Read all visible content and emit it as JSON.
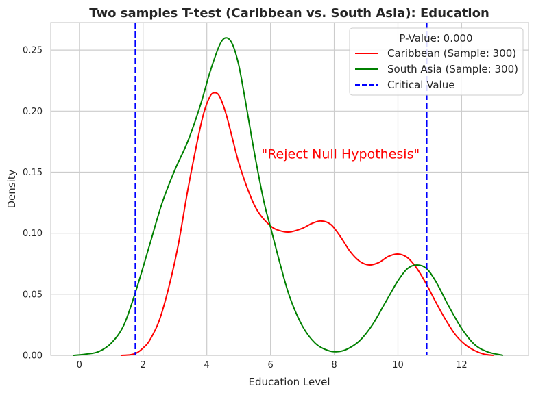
{
  "chart_data": {
    "type": "line",
    "title": "Two samples T-test (Caribbean vs. South Asia): Education",
    "xlabel": "Education Level",
    "ylabel": "Density",
    "xlim": [
      -0.9,
      14.1
    ],
    "ylim": [
      0,
      0.2725
    ],
    "xticks": [
      0,
      2,
      4,
      6,
      8,
      10,
      12
    ],
    "yticks": [
      0.0,
      0.05,
      0.1,
      0.15,
      0.2,
      0.25
    ],
    "ytick_labels": [
      "0.00",
      "0.05",
      "0.10",
      "0.15",
      "0.20",
      "0.25"
    ],
    "grid": true,
    "legend": {
      "title": "P-Value: 0.000",
      "placement": "top-right",
      "entries": [
        "Caribbean (Sample: 300)",
        "South Asia (Sample: 300)",
        "Critical Value"
      ]
    },
    "annotation": {
      "text": "\"Reject Null Hypothesis\"",
      "x": 8.2,
      "y": 0.165,
      "color": "#ff0000"
    },
    "critical_values": [
      1.76,
      10.9
    ],
    "series": [
      {
        "name": "Caribbean (Sample: 300)",
        "color": "#ff0000",
        "points": [
          [
            1.3,
            0.0
          ],
          [
            1.6,
            0.0005
          ],
          [
            1.8,
            0.002
          ],
          [
            2.0,
            0.006
          ],
          [
            2.2,
            0.012
          ],
          [
            2.5,
            0.028
          ],
          [
            2.8,
            0.055
          ],
          [
            3.1,
            0.09
          ],
          [
            3.4,
            0.135
          ],
          [
            3.7,
            0.175
          ],
          [
            3.9,
            0.198
          ],
          [
            4.1,
            0.212
          ],
          [
            4.25,
            0.215
          ],
          [
            4.4,
            0.212
          ],
          [
            4.6,
            0.198
          ],
          [
            4.8,
            0.178
          ],
          [
            5.0,
            0.158
          ],
          [
            5.3,
            0.135
          ],
          [
            5.6,
            0.118
          ],
          [
            6.0,
            0.106
          ],
          [
            6.3,
            0.102
          ],
          [
            6.6,
            0.101
          ],
          [
            7.0,
            0.104
          ],
          [
            7.3,
            0.108
          ],
          [
            7.6,
            0.11
          ],
          [
            7.9,
            0.107
          ],
          [
            8.2,
            0.097
          ],
          [
            8.5,
            0.085
          ],
          [
            8.8,
            0.077
          ],
          [
            9.1,
            0.074
          ],
          [
            9.4,
            0.076
          ],
          [
            9.7,
            0.081
          ],
          [
            10.0,
            0.083
          ],
          [
            10.3,
            0.08
          ],
          [
            10.6,
            0.071
          ],
          [
            10.9,
            0.058
          ],
          [
            11.2,
            0.043
          ],
          [
            11.5,
            0.029
          ],
          [
            11.8,
            0.017
          ],
          [
            12.1,
            0.009
          ],
          [
            12.4,
            0.004
          ],
          [
            12.7,
            0.001
          ],
          [
            13.0,
            0.0
          ]
        ]
      },
      {
        "name": "South Asia (Sample: 300)",
        "color": "#008000",
        "points": [
          [
            -0.2,
            0.0
          ],
          [
            0.2,
            0.001
          ],
          [
            0.6,
            0.003
          ],
          [
            1.0,
            0.01
          ],
          [
            1.4,
            0.025
          ],
          [
            1.8,
            0.055
          ],
          [
            2.2,
            0.09
          ],
          [
            2.6,
            0.125
          ],
          [
            3.0,
            0.152
          ],
          [
            3.4,
            0.175
          ],
          [
            3.8,
            0.205
          ],
          [
            4.1,
            0.232
          ],
          [
            4.4,
            0.254
          ],
          [
            4.6,
            0.26
          ],
          [
            4.8,
            0.255
          ],
          [
            5.0,
            0.238
          ],
          [
            5.2,
            0.21
          ],
          [
            5.5,
            0.165
          ],
          [
            5.8,
            0.125
          ],
          [
            6.0,
            0.105
          ],
          [
            6.3,
            0.075
          ],
          [
            6.6,
            0.048
          ],
          [
            7.0,
            0.024
          ],
          [
            7.4,
            0.01
          ],
          [
            7.8,
            0.004
          ],
          [
            8.1,
            0.003
          ],
          [
            8.4,
            0.005
          ],
          [
            8.8,
            0.012
          ],
          [
            9.2,
            0.025
          ],
          [
            9.6,
            0.043
          ],
          [
            10.0,
            0.061
          ],
          [
            10.3,
            0.071
          ],
          [
            10.6,
            0.074
          ],
          [
            10.9,
            0.071
          ],
          [
            11.2,
            0.06
          ],
          [
            11.6,
            0.04
          ],
          [
            12.0,
            0.022
          ],
          [
            12.4,
            0.009
          ],
          [
            12.8,
            0.003
          ],
          [
            13.3,
            0.0
          ]
        ]
      }
    ]
  }
}
